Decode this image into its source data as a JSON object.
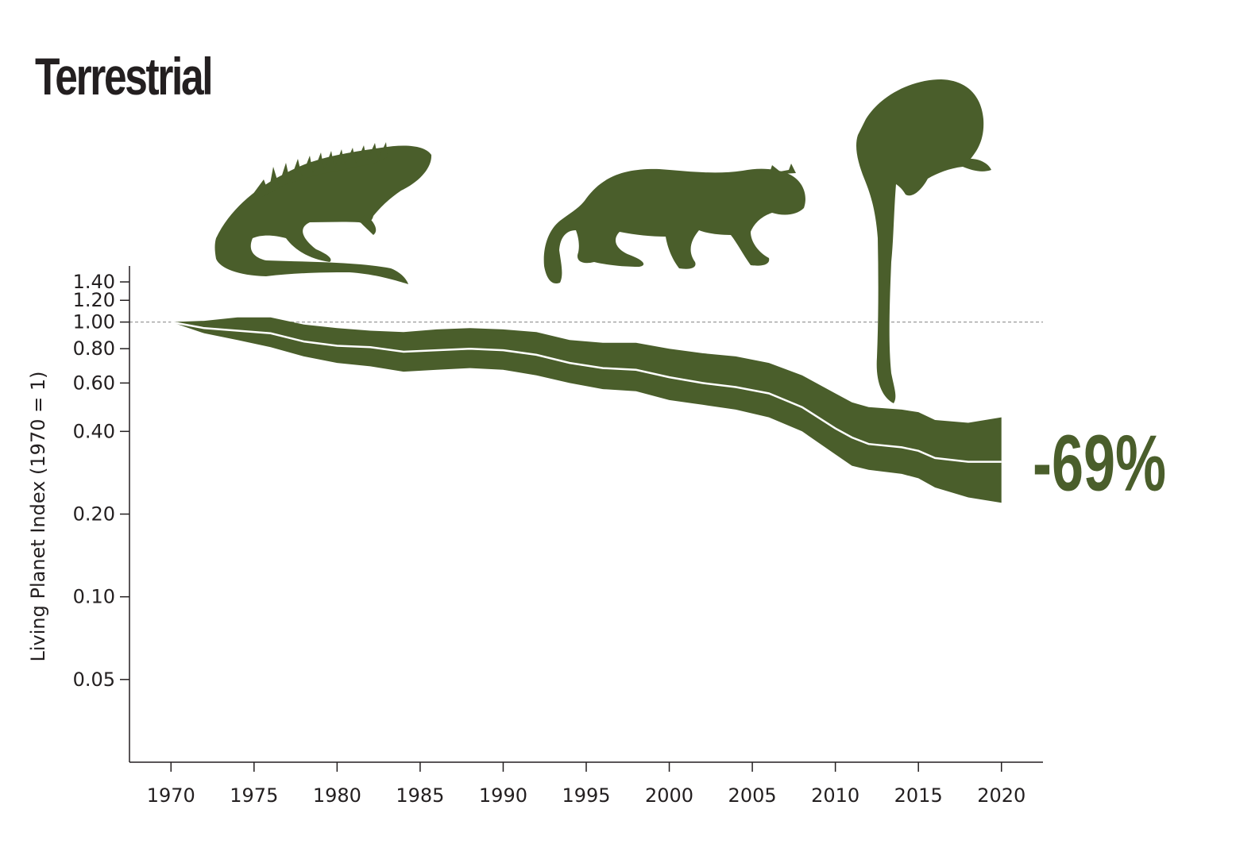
{
  "title": "Terrestrial",
  "colors": {
    "band": "#4a5e2b",
    "trend_line": "#ffffff",
    "axis": "#231f20",
    "reference_line": "#999999",
    "change_label": "#4a5e2b"
  },
  "icons": [
    "iguana-silhouette",
    "wild-cat-silhouette",
    "tamarin-silhouette"
  ],
  "chart_data": {
    "type": "area",
    "title": "Terrestrial",
    "ylabel": "Living Planet Index (1970 = 1)",
    "y_scale": "log",
    "ylim": [
      0.025,
      1.6
    ],
    "xlim": [
      1967.5,
      2022.5
    ],
    "x_ticks": [
      "1970",
      "1975",
      "1980",
      "1985",
      "1990",
      "1995",
      "2000",
      "2005",
      "2010",
      "2015",
      "2020"
    ],
    "y_ticks": [
      "1.40",
      "1.20",
      "1.00",
      "0.80",
      "0.60",
      "0.40",
      "0.20",
      "0.10",
      "0.05"
    ],
    "reference_line": 1.0,
    "grid": false,
    "change_label": "-69%",
    "series": [
      {
        "x": [
          1970,
          1972,
          1974,
          1976,
          1978,
          1980,
          1982,
          1984,
          1986,
          1988,
          1990,
          1992,
          1994,
          1996,
          1998,
          2000,
          2002,
          2004,
          2006,
          2008,
          2010,
          2011,
          2012,
          2014,
          2015,
          2016,
          2018,
          2020
        ],
        "y": [
          1.0,
          0.95,
          0.93,
          0.91,
          0.85,
          0.82,
          0.81,
          0.78,
          0.79,
          0.8,
          0.79,
          0.76,
          0.71,
          0.68,
          0.67,
          0.63,
          0.6,
          0.58,
          0.55,
          0.49,
          0.41,
          0.38,
          0.36,
          0.35,
          0.34,
          0.32,
          0.31,
          0.31
        ],
        "lower": [
          1.0,
          0.91,
          0.86,
          0.81,
          0.75,
          0.71,
          0.69,
          0.66,
          0.67,
          0.68,
          0.67,
          0.64,
          0.6,
          0.57,
          0.56,
          0.52,
          0.5,
          0.48,
          0.45,
          0.4,
          0.33,
          0.3,
          0.29,
          0.28,
          0.27,
          0.25,
          0.23,
          0.22
        ],
        "upper": [
          1.0,
          1.01,
          1.04,
          1.04,
          0.98,
          0.95,
          0.93,
          0.92,
          0.94,
          0.95,
          0.94,
          0.92,
          0.86,
          0.84,
          0.84,
          0.8,
          0.77,
          0.75,
          0.71,
          0.64,
          0.55,
          0.51,
          0.49,
          0.48,
          0.47,
          0.44,
          0.43,
          0.45
        ]
      }
    ]
  }
}
